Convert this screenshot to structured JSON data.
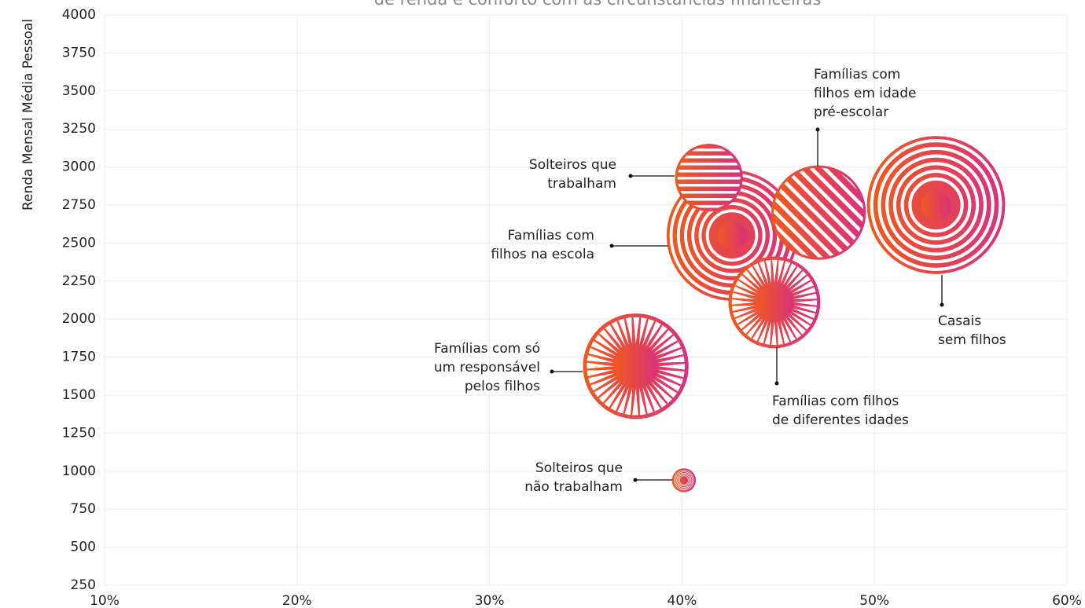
{
  "chart_data": {
    "type": "bubble",
    "title": "de renda e conforto com as circunstâncias financeiras",
    "y_label": "Renda Mensal Média Pessoal",
    "labels": [
      [
        "Solteiros que",
        "trabalham"
      ],
      [
        "Famílias com",
        "filhos na escola"
      ],
      [
        "Famílias com",
        "filhos em idade",
        "pré-escolar"
      ],
      [
        "Casais",
        "sem filhos"
      ],
      [
        "Famílias com filhos",
        "de diferentes idades"
      ],
      [
        "Famílias com só",
        "um responsável",
        "pelos filhos"
      ],
      [
        "Solteiros que",
        "não trabalham"
      ]
    ],
    "x": [
      41.4,
      42.6,
      47.1,
      53.2,
      44.8,
      37.6,
      40.1
    ],
    "y": [
      2930,
      2550,
      2700,
      2750,
      2110,
      1690,
      940
    ],
    "sizes": [
      18.5,
      69,
      36,
      77,
      34,
      45,
      2.3
    ],
    "colors": [
      "#ef5a1c",
      "#d8317f"
    ],
    "xlim": [
      10,
      60
    ],
    "xticks": [
      {
        "value": 10,
        "label": "10%"
      },
      {
        "value": 20,
        "label": "20%"
      },
      {
        "value": 30,
        "label": "30%"
      },
      {
        "value": 40,
        "label": "40%"
      },
      {
        "value": 50,
        "label": "50%"
      },
      {
        "value": 60,
        "label": "60%"
      }
    ],
    "ylim": [
      250,
      4000
    ],
    "yticks": [
      250,
      500,
      750,
      1000,
      1250,
      1500,
      1750,
      2000,
      2250,
      2500,
      2750,
      3000,
      3250,
      3500,
      3750,
      4000
    ],
    "grid": true
  }
}
